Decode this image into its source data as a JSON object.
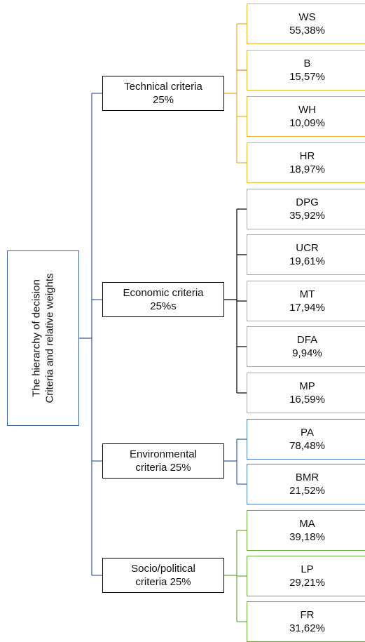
{
  "root": {
    "line1": "The hierarchy of decision",
    "line2": "Criteria and relative weights"
  },
  "criteria": [
    {
      "name": "Technical criteria",
      "weight": "25%",
      "color": "#e8b52c",
      "sub": [
        {
          "code": "WS",
          "value": "55,38%"
        },
        {
          "code": "B",
          "value": "15,57%"
        },
        {
          "code": "WH",
          "value": "10,09%"
        },
        {
          "code": "HR",
          "value": "18,97%"
        }
      ]
    },
    {
      "name": "Economic criteria",
      "weight": "25%s",
      "color": "#a8a8a8",
      "sub": [
        {
          "code": "DPG",
          "value": "35,92%"
        },
        {
          "code": "UCR",
          "value": "19,61%"
        },
        {
          "code": "MT",
          "value": "17,94%"
        },
        {
          "code": "DFA",
          "value": "9,94%"
        },
        {
          "code": "MP",
          "value": "16,59%"
        }
      ]
    },
    {
      "name": "Environmental",
      "weight": "criteria 25%",
      "color": "#4f7fc7",
      "sub": [
        {
          "code": "PA",
          "value": "78,48%"
        },
        {
          "code": "BMR",
          "value": "21,52%"
        }
      ]
    },
    {
      "name": "Socio/political",
      "weight": "criteria 25%",
      "color": "#6aab3c",
      "sub": [
        {
          "code": "MA",
          "value": "39,18%"
        },
        {
          "code": "LP",
          "value": "29,21%"
        },
        {
          "code": "FR",
          "value": "31,62%"
        }
      ]
    }
  ]
}
